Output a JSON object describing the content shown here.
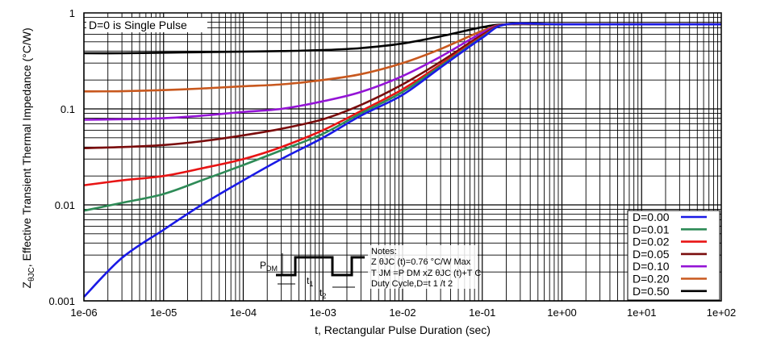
{
  "chart_data": {
    "type": "line",
    "xlabel": "t, Rectangular Pulse Duration (sec)",
    "ylabel_main": "Z",
    "ylabel_sub": "θJC",
    "ylabel_rest": ", Effective Transient Thermal Impedance (°C/W)",
    "x_scale": "log",
    "y_scale": "log",
    "xlim": [
      1e-06,
      100
    ],
    "ylim": [
      0.001,
      1
    ],
    "grid": true,
    "x_ticks": [
      "1e-06",
      "1e-05",
      "1e-04",
      "1e-03",
      "1e-02",
      "1e-01",
      "1e+00",
      "1e+01",
      "1e+02"
    ],
    "y_ticks": [
      "0.001",
      "0.01",
      "0.1",
      "1"
    ],
    "legend_position": "bottom-right",
    "annotation": "D=0 is Single Pulse",
    "x": [
      1e-06,
      3e-06,
      1e-05,
      3e-05,
      0.0001,
      0.0003,
      0.001,
      0.003,
      0.01,
      0.03,
      0.1,
      0.2,
      1,
      10,
      100
    ],
    "series": [
      {
        "name": "D=0.00",
        "color": "#1a1ae6",
        "values": [
          0.0011,
          0.0028,
          0.0055,
          0.01,
          0.018,
          0.03,
          0.05,
          0.085,
          0.14,
          0.27,
          0.55,
          0.76,
          0.76,
          0.76,
          0.76
        ]
      },
      {
        "name": "D=0.01",
        "color": "#2e8b57",
        "values": [
          0.0087,
          0.0105,
          0.013,
          0.018,
          0.026,
          0.037,
          0.055,
          0.09,
          0.15,
          0.28,
          0.56,
          0.76,
          0.76,
          0.76,
          0.76
        ]
      },
      {
        "name": "D=0.02",
        "color": "#e81414",
        "values": [
          0.016,
          0.018,
          0.02,
          0.024,
          0.03,
          0.04,
          0.06,
          0.095,
          0.16,
          0.29,
          0.57,
          0.76,
          0.76,
          0.76,
          0.76
        ]
      },
      {
        "name": "D=0.05",
        "color": "#7a0c0c",
        "values": [
          0.039,
          0.04,
          0.042,
          0.046,
          0.053,
          0.062,
          0.078,
          0.11,
          0.18,
          0.31,
          0.59,
          0.76,
          0.76,
          0.76,
          0.76
        ]
      },
      {
        "name": "D=0.10",
        "color": "#9414d6",
        "values": [
          0.077,
          0.078,
          0.08,
          0.085,
          0.093,
          0.1,
          0.12,
          0.15,
          0.22,
          0.35,
          0.62,
          0.76,
          0.76,
          0.76,
          0.76
        ]
      },
      {
        "name": "D=0.20",
        "color": "#c8581e",
        "values": [
          0.152,
          0.153,
          0.157,
          0.163,
          0.172,
          0.18,
          0.2,
          0.23,
          0.3,
          0.42,
          0.65,
          0.76,
          0.76,
          0.76,
          0.76
        ]
      },
      {
        "name": "D=0.50",
        "color": "#000000",
        "values": [
          0.38,
          0.38,
          0.385,
          0.39,
          0.395,
          0.4,
          0.41,
          0.43,
          0.48,
          0.57,
          0.71,
          0.76,
          0.76,
          0.76,
          0.76
        ]
      }
    ],
    "inset": {
      "notes_title": "Notes:",
      "note1": "Z θJC (t)=0.76 °C/W Max",
      "note2": "T JM =P DM xZ θJC (t)+T C",
      "note3": "Duty Cycle,D=t 1 /t 2",
      "pdm": "P",
      "pdm_sub": "DM",
      "t1": "t",
      "t1_sub": "1",
      "t2": "t",
      "t2_sub": "2"
    }
  }
}
